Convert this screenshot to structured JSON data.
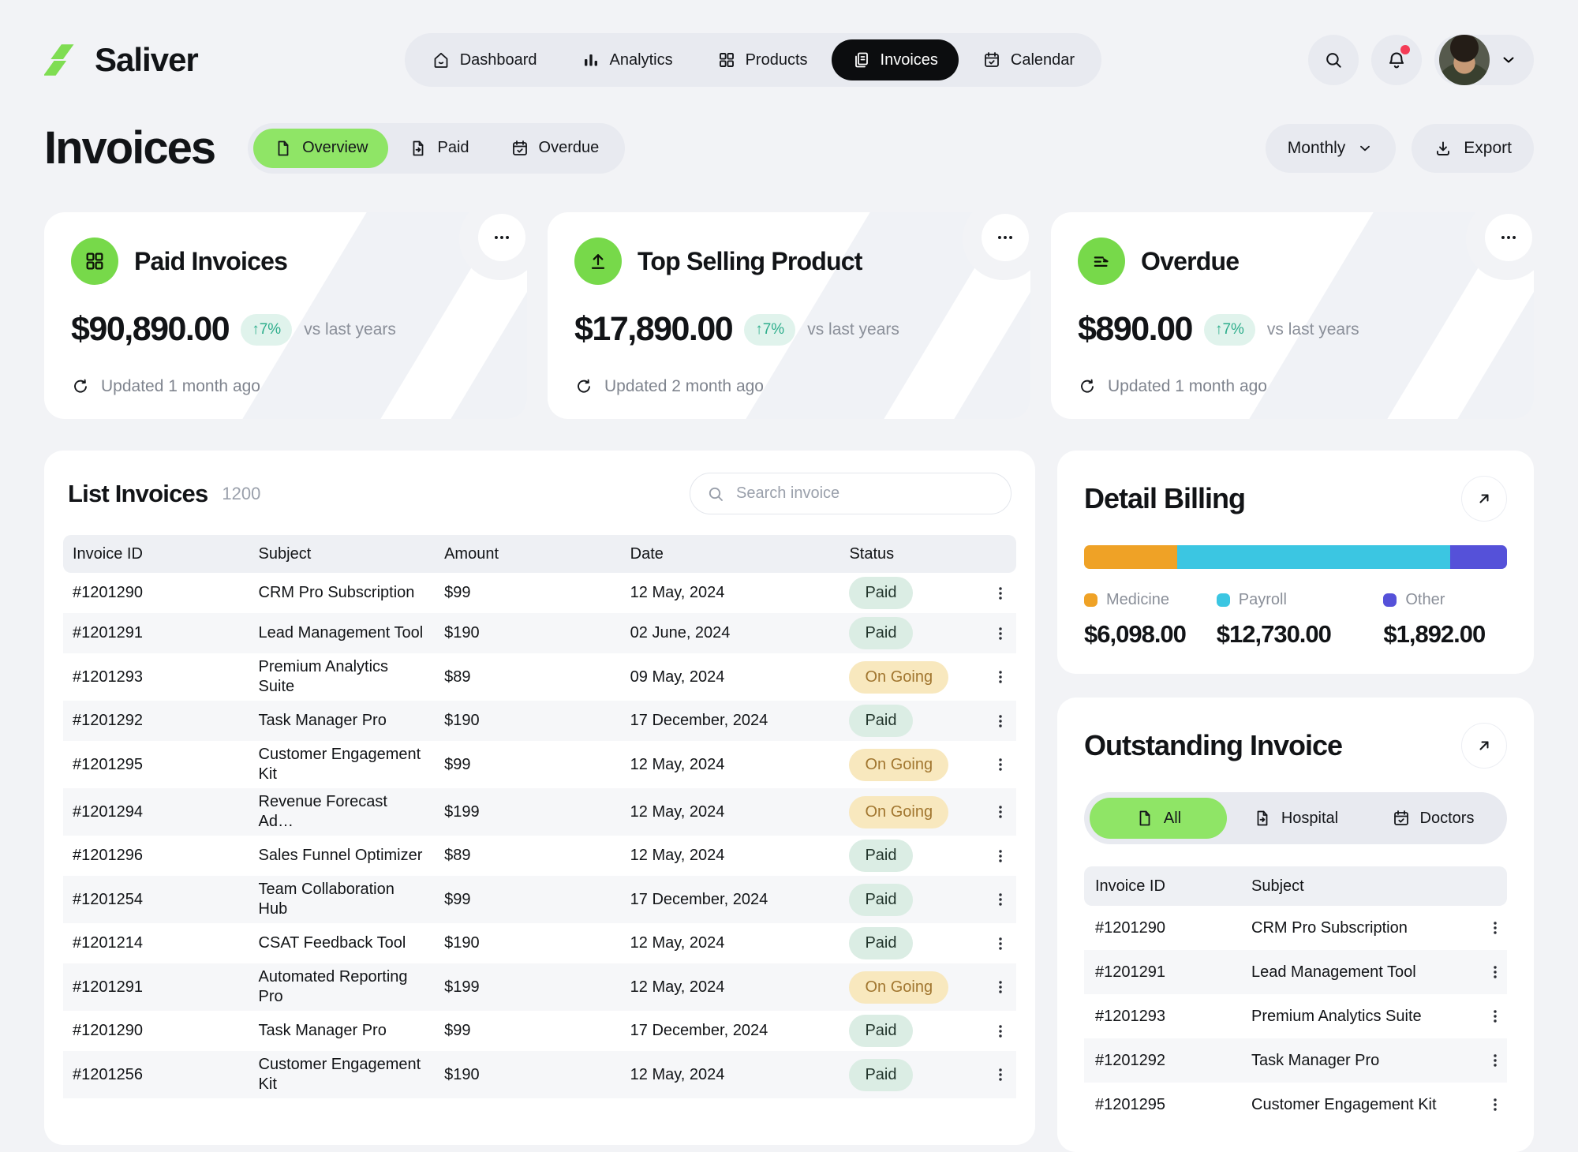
{
  "header": {
    "brand": "Saliver",
    "nav": [
      {
        "label": "Dashboard",
        "icon": "home-icon",
        "active": false
      },
      {
        "label": "Analytics",
        "icon": "bar-chart-icon",
        "active": false
      },
      {
        "label": "Products",
        "icon": "grid-icon",
        "active": false
      },
      {
        "label": "Invoices",
        "icon": "invoice-icon",
        "active": true
      },
      {
        "label": "Calendar",
        "icon": "calendar-icon",
        "active": false
      }
    ],
    "has_unread_notification": true
  },
  "page": {
    "title": "Invoices",
    "tabs": [
      {
        "label": "Overview",
        "icon": "file-icon",
        "active": true
      },
      {
        "label": "Paid",
        "icon": "file-export-icon",
        "active": false
      },
      {
        "label": "Overdue",
        "icon": "calendar-check-icon",
        "active": false
      }
    ],
    "period_label": "Monthly",
    "export_label": "Export"
  },
  "stats": [
    {
      "icon": "grid-icon",
      "title": "Paid Invoices",
      "amount": "$90,890.00",
      "delta": "↑7%",
      "compare": "vs last years",
      "updated": "Updated 1 month ago"
    },
    {
      "icon": "upload-icon",
      "title": "Top Selling Product",
      "amount": "$17,890.00",
      "delta": "↑7%",
      "compare": "vs last years",
      "updated": "Updated 2 month ago"
    },
    {
      "icon": "list-arrow-icon",
      "title": "Overdue",
      "amount": "$890.00",
      "delta": "↑7%",
      "compare": "vs last years",
      "updated": "Updated 1 month ago"
    }
  ],
  "invoices": {
    "title": "List Invoices",
    "count": "1200",
    "search_placeholder": "Search invoice",
    "columns": [
      "Invoice ID",
      "Subject",
      "Amount",
      "Date",
      "Status"
    ],
    "rows": [
      {
        "id": "#1201290",
        "subject": "CRM Pro Subscription",
        "amount": "$99",
        "date": "12 May, 2024",
        "status": "Paid"
      },
      {
        "id": "#1201291",
        "subject": "Lead Management Tool",
        "amount": "$190",
        "date": "02 June, 2024",
        "status": "Paid"
      },
      {
        "id": "#1201293",
        "subject": "Premium Analytics Suite",
        "amount": "$89",
        "date": "09 May, 2024",
        "status": "On Going"
      },
      {
        "id": "#1201292",
        "subject": "Task Manager Pro",
        "amount": "$190",
        "date": "17 December, 2024",
        "status": "Paid"
      },
      {
        "id": "#1201295",
        "subject": "Customer Engagement Kit",
        "amount": "$99",
        "date": "12 May, 2024",
        "status": "On Going"
      },
      {
        "id": "#1201294",
        "subject": "Revenue Forecast Ad…",
        "amount": "$199",
        "date": "12 May, 2024",
        "status": "On Going"
      },
      {
        "id": "#1201296",
        "subject": "Sales Funnel Optimizer",
        "amount": "$89",
        "date": "12 May, 2024",
        "status": "Paid"
      },
      {
        "id": "#1201254",
        "subject": "Team Collaboration Hub",
        "amount": "$99",
        "date": "17 December, 2024",
        "status": "Paid"
      },
      {
        "id": "#1201214",
        "subject": "CSAT Feedback Tool",
        "amount": "$190",
        "date": "12 May, 2024",
        "status": "Paid"
      },
      {
        "id": "#1201291",
        "subject": "Automated Reporting Pro",
        "amount": "$199",
        "date": "12 May, 2024",
        "status": "On Going"
      },
      {
        "id": "#1201290",
        "subject": "Task Manager Pro",
        "amount": "$99",
        "date": "17 December, 2024",
        "status": "Paid"
      },
      {
        "id": "#1201256",
        "subject": "Customer Engagement Kit",
        "amount": "$190",
        "date": "12 May, 2024",
        "status": "Paid"
      }
    ]
  },
  "detail_billing": {
    "title": "Detail Billing",
    "segments": [
      {
        "label": "Medicine",
        "value": "$6,098.00",
        "color": "#EFA226",
        "percent": 22
      },
      {
        "label": "Payroll",
        "value": "$12,730.00",
        "color": "#3BC6E2",
        "percent": 64.5
      },
      {
        "label": "Other",
        "value": "$1,892.00",
        "color": "#5551D9",
        "percent": 13.5
      }
    ]
  },
  "outstanding": {
    "title": "Outstanding Invoice",
    "tabs": [
      {
        "label": "All",
        "icon": "file-icon",
        "active": true
      },
      {
        "label": "Hospital",
        "icon": "file-export-icon",
        "active": false
      },
      {
        "label": "Doctors",
        "icon": "calendar-check-icon",
        "active": false
      }
    ],
    "columns": [
      "Invoice ID",
      "Subject"
    ],
    "rows": [
      {
        "id": "#1201290",
        "subject": "CRM Pro Subscription"
      },
      {
        "id": "#1201291",
        "subject": "Lead Management Tool"
      },
      {
        "id": "#1201293",
        "subject": "Premium Analytics Suite"
      },
      {
        "id": "#1201292",
        "subject": "Task Manager Pro"
      },
      {
        "id": "#1201295",
        "subject": "Customer Engagement Kit"
      }
    ]
  },
  "colors": {
    "page_background": "#F2F3F6",
    "accent_green_tab": "#8FE566",
    "accent_green_circle": "#77D94A",
    "active_nav": "#0C0D0F",
    "delta_pill_bg": "#E0F3EC",
    "delta_pill_text": "#2EAE8C",
    "paid_pill_bg": "#DBEDE4",
    "ongoing_pill_bg": "#F8E8BE",
    "notification_dot": "#F43B56"
  }
}
